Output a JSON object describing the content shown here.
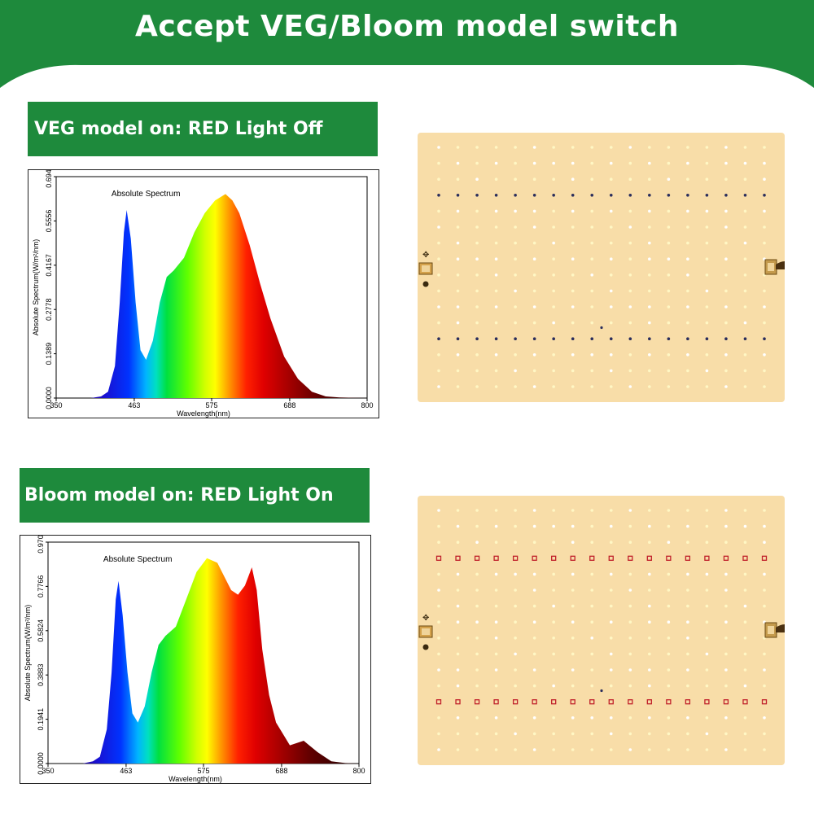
{
  "header": {
    "title": "Accept VEG/Bloom model switch"
  },
  "sections": [
    {
      "label": "VEG model on: RED Light Off",
      "chart_data": {
        "type": "area",
        "title": "Absolute Spectrum",
        "xlabel": "Wavelength(nm)",
        "ylabel": "Absolute Spectrum(W/m²/nm)",
        "xlim": [
          350,
          800
        ],
        "ylim": [
          0,
          0.6946
        ],
        "x_ticks": [
          "350",
          "463",
          "575",
          "688",
          "800"
        ],
        "y_ticks": [
          "0.0000",
          "0.1389",
          "0.2778",
          "0.4167",
          "0.5556",
          "0.6946"
        ],
        "x": [
          350,
          400,
          415,
          425,
          435,
          442,
          448,
          452,
          458,
          465,
          472,
          480,
          490,
          500,
          510,
          520,
          535,
          550,
          565,
          580,
          595,
          605,
          615,
          630,
          645,
          660,
          680,
          700,
          720,
          740,
          760,
          780,
          800
        ],
        "y": [
          0,
          0,
          0.005,
          0.02,
          0.1,
          0.3,
          0.52,
          0.59,
          0.5,
          0.3,
          0.15,
          0.12,
          0.18,
          0.3,
          0.38,
          0.4,
          0.44,
          0.52,
          0.58,
          0.62,
          0.64,
          0.62,
          0.58,
          0.48,
          0.36,
          0.25,
          0.13,
          0.06,
          0.02,
          0.005,
          0.002,
          0.001,
          0
        ]
      },
      "led_panel": {
        "dark_rows": [
          3,
          12
        ],
        "blue_accent": "#2a2d5c"
      }
    },
    {
      "label": "Bloom model on: RED Light On",
      "chart_data": {
        "type": "area",
        "title": "Absolute Spectrum",
        "xlabel": "Wavelength(nm)",
        "ylabel": "Absolute Spectrum(W/m²/nm)",
        "xlim": [
          350,
          800
        ],
        "ylim": [
          0,
          0.9707
        ],
        "x_ticks": [
          "350",
          "463",
          "575",
          "688",
          "800"
        ],
        "y_ticks": [
          "0.0000",
          "0.1941",
          "0.3883",
          "0.5824",
          "0.7766",
          "0.9707"
        ],
        "x": [
          350,
          400,
          415,
          425,
          435,
          442,
          448,
          452,
          458,
          465,
          472,
          480,
          490,
          500,
          510,
          520,
          535,
          550,
          565,
          580,
          595,
          605,
          615,
          625,
          635,
          645,
          652,
          660,
          670,
          680,
          700,
          720,
          740,
          760,
          780,
          800
        ],
        "y": [
          0,
          0,
          0.01,
          0.03,
          0.15,
          0.4,
          0.72,
          0.8,
          0.65,
          0.4,
          0.22,
          0.18,
          0.25,
          0.4,
          0.52,
          0.56,
          0.6,
          0.72,
          0.84,
          0.9,
          0.88,
          0.82,
          0.76,
          0.74,
          0.78,
          0.86,
          0.76,
          0.5,
          0.3,
          0.18,
          0.08,
          0.1,
          0.05,
          0.01,
          0.002,
          0
        ]
      },
      "led_panel": {
        "dark_rows": [
          3,
          12
        ],
        "red_accent": "#c0202a"
      }
    }
  ],
  "colors": {
    "brand_green": "#1e8a3c",
    "panel": "#f8dda8"
  }
}
